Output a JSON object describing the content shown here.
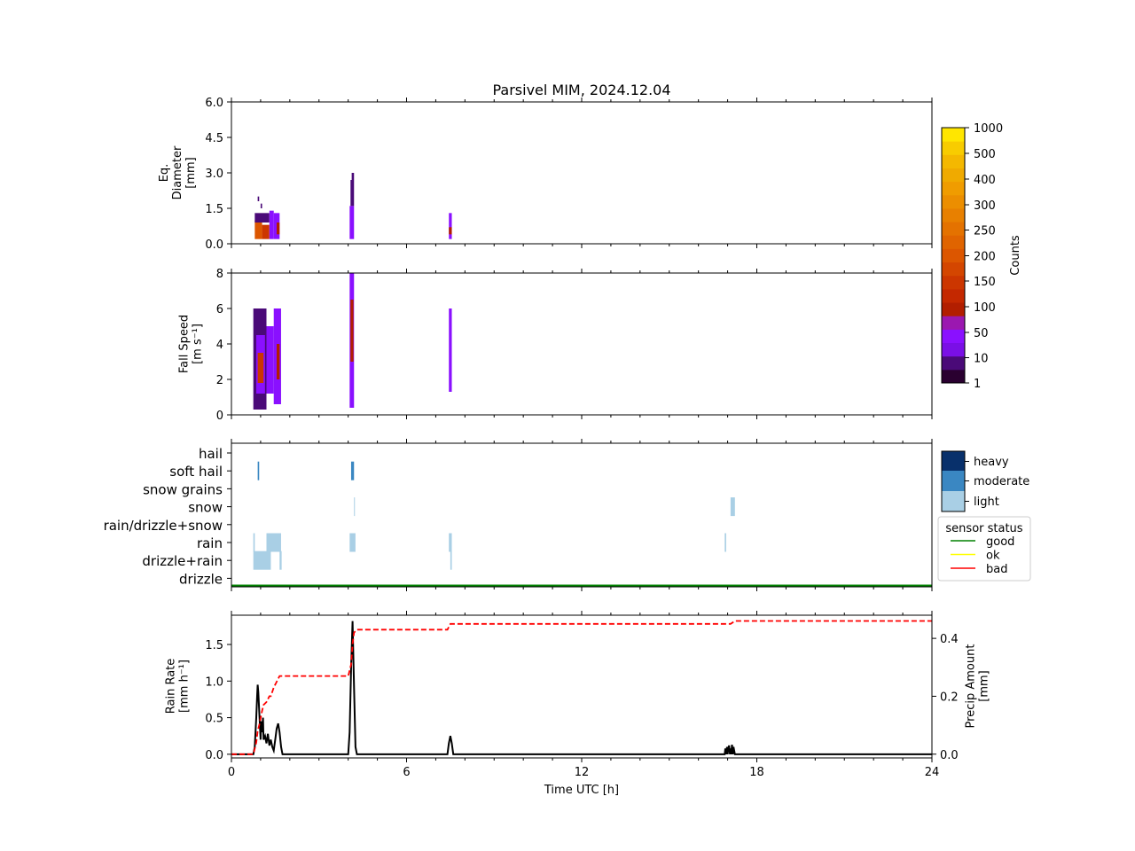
{
  "title": "Parsivel MIM, 2024.12.04",
  "colors": {
    "counts_levels": [
      "#2a0030",
      "#4a0a78",
      "#7a0fe6",
      "#8a10ff",
      "#9b18b0",
      "#b21e00",
      "#c42800",
      "#cc3600",
      "#d44600",
      "#dc5600",
      "#e06400",
      "#e47200",
      "#e88000",
      "#ec8e00",
      "#f09c00",
      "#f0aa00",
      "#f4b800",
      "#f8cc00",
      "#ffe600"
    ],
    "intensity": {
      "heavy": "#08306b",
      "moderate": "#3a87c2",
      "light": "#a9cfe5"
    },
    "status": {
      "good": "#008000",
      "ok": "#ffff00",
      "bad": "#ff0000"
    }
  },
  "chart_data": [
    {
      "panel": "diameter",
      "type": "heatmap",
      "ylabel": [
        "Eq.",
        "Diameter",
        "[mm]"
      ],
      "ylim": [
        0,
        6
      ],
      "yticks": [
        "0.0",
        "1.5",
        "3.0",
        "4.5",
        "6.0"
      ],
      "xlim": [
        0,
        24
      ],
      "cells": [
        {
          "t0": 0.8,
          "t1": 1.05,
          "d0": 0.2,
          "d1": 1.0,
          "level": 9
        },
        {
          "t0": 1.05,
          "t1": 1.3,
          "d0": 0.2,
          "d1": 0.8,
          "level": 7
        },
        {
          "t0": 0.8,
          "t1": 1.3,
          "d0": 0.9,
          "d1": 1.3,
          "level": 1
        },
        {
          "t0": 1.3,
          "t1": 1.45,
          "d0": 0.2,
          "d1": 1.4,
          "level": 3
        },
        {
          "t0": 1.45,
          "t1": 1.65,
          "d0": 0.2,
          "d1": 1.3,
          "level": 3
        },
        {
          "t0": 1.55,
          "t1": 1.65,
          "d0": 0.4,
          "d1": 0.9,
          "level": 5
        },
        {
          "t0": 0.9,
          "t1": 0.95,
          "d0": 1.8,
          "d1": 2.0,
          "level": 1
        },
        {
          "t0": 1.0,
          "t1": 1.05,
          "d0": 1.5,
          "d1": 1.7,
          "level": 1
        },
        {
          "t0": 4.05,
          "t1": 4.2,
          "d0": 0.2,
          "d1": 1.6,
          "level": 3
        },
        {
          "t0": 4.08,
          "t1": 4.2,
          "d0": 1.6,
          "d1": 2.7,
          "level": 1
        },
        {
          "t0": 4.12,
          "t1": 4.2,
          "d0": 2.7,
          "d1": 3.0,
          "level": 1
        },
        {
          "t0": 7.45,
          "t1": 7.55,
          "d0": 0.2,
          "d1": 1.3,
          "level": 3
        },
        {
          "t0": 7.45,
          "t1": 7.55,
          "d0": 0.4,
          "d1": 0.7,
          "level": 5
        }
      ]
    },
    {
      "panel": "fall_speed",
      "type": "heatmap",
      "ylabel": [
        "Fall Speed",
        "[m s⁻¹]"
      ],
      "ylim": [
        0,
        8
      ],
      "yticks": [
        "0",
        "2",
        "4",
        "6",
        "8"
      ],
      "xlim": [
        0,
        24
      ],
      "cells": [
        {
          "t0": 0.75,
          "t1": 1.2,
          "v0": 0.3,
          "v1": 6.0,
          "level": 1
        },
        {
          "t0": 0.85,
          "t1": 1.15,
          "v0": 1.2,
          "v1": 4.5,
          "level": 3
        },
        {
          "t0": 0.9,
          "t1": 1.1,
          "v0": 1.8,
          "v1": 3.5,
          "level": 7
        },
        {
          "t0": 1.2,
          "t1": 1.45,
          "v0": 1.2,
          "v1": 5.0,
          "level": 3
        },
        {
          "t0": 1.45,
          "t1": 1.7,
          "v0": 0.6,
          "v1": 6.0,
          "level": 3
        },
        {
          "t0": 1.55,
          "t1": 1.65,
          "v0": 2.0,
          "v1": 4.0,
          "level": 5
        },
        {
          "t0": 4.05,
          "t1": 4.2,
          "v0": 0.4,
          "v1": 8.0,
          "level": 3
        },
        {
          "t0": 4.08,
          "t1": 4.18,
          "v0": 3.0,
          "v1": 6.5,
          "level": 5
        },
        {
          "t0": 7.45,
          "t1": 7.55,
          "v0": 1.3,
          "v1": 6.0,
          "level": 3
        }
      ]
    },
    {
      "panel": "precip_type",
      "type": "heatmap",
      "categories": [
        "hail",
        "soft hail",
        "snow grains",
        "snow",
        "rain/drizzle+snow",
        "rain",
        "drizzle+rain",
        "drizzle"
      ],
      "xlim": [
        0,
        24
      ],
      "legend": {
        "labels": [
          "heavy",
          "moderate",
          "light"
        ]
      },
      "status_legend": {
        "title": "sensor status",
        "labels": [
          "good",
          "ok",
          "bad"
        ]
      },
      "status_series": {
        "value": "good",
        "from": 0,
        "to": 24
      },
      "cells": [
        {
          "cat": "soft hail",
          "t0": 0.9,
          "t1": 0.95,
          "intensity": "moderate"
        },
        {
          "cat": "soft hail",
          "t0": 4.1,
          "t1": 4.2,
          "intensity": "moderate"
        },
        {
          "cat": "snow",
          "t0": 4.2,
          "t1": 4.23,
          "intensity": "light"
        },
        {
          "cat": "snow",
          "t0": 17.1,
          "t1": 17.25,
          "intensity": "light"
        },
        {
          "cat": "rain",
          "t0": 0.75,
          "t1": 0.8,
          "intensity": "light"
        },
        {
          "cat": "rain",
          "t0": 1.2,
          "t1": 1.7,
          "intensity": "light"
        },
        {
          "cat": "rain",
          "t0": 4.05,
          "t1": 4.25,
          "intensity": "light"
        },
        {
          "cat": "rain",
          "t0": 7.45,
          "t1": 7.55,
          "intensity": "light"
        },
        {
          "cat": "rain",
          "t0": 16.9,
          "t1": 16.95,
          "intensity": "light"
        },
        {
          "cat": "drizzle+rain",
          "t0": 0.75,
          "t1": 1.35,
          "intensity": "light"
        },
        {
          "cat": "drizzle+rain",
          "t0": 1.65,
          "t1": 1.72,
          "intensity": "light"
        },
        {
          "cat": "drizzle+rain",
          "t0": 7.5,
          "t1": 7.55,
          "intensity": "light"
        }
      ]
    },
    {
      "panel": "rain",
      "type": "line",
      "xlabel": "Time UTC [h]",
      "xlim": [
        0,
        24
      ],
      "xticks": [
        "0",
        "6",
        "12",
        "18",
        "24"
      ],
      "ylabel": [
        "Rain Rate",
        "[mm h⁻¹]"
      ],
      "ylim": [
        -0.05,
        1.9
      ],
      "yticks": [
        "0.0",
        "0.5",
        "1.0",
        "1.5"
      ],
      "y2label": [
        "Precip Amount",
        "[mm]"
      ],
      "y2lim": [
        -0.013,
        0.48
      ],
      "y2ticks": [
        "0.0",
        "0.2",
        "0.4"
      ],
      "series": [
        {
          "axis": "left",
          "color": "#000000",
          "style": "solid",
          "x": [
            0,
            0.75,
            0.8,
            0.85,
            0.88,
            0.9,
            0.92,
            0.95,
            1.0,
            1.02,
            1.05,
            1.08,
            1.1,
            1.15,
            1.2,
            1.25,
            1.3,
            1.35,
            1.4,
            1.45,
            1.5,
            1.55,
            1.6,
            1.65,
            1.7,
            1.75,
            4.0,
            4.05,
            4.1,
            4.15,
            4.2,
            4.25,
            4.3,
            7.4,
            7.45,
            7.5,
            7.55,
            7.6,
            16.9,
            16.92,
            16.95,
            16.98,
            17.0,
            17.02,
            17.05,
            17.08,
            17.1,
            17.12,
            17.15,
            17.18,
            17.2,
            17.25,
            24
          ],
          "y": [
            0,
            0,
            0.1,
            0.5,
            0.8,
            0.95,
            0.85,
            0.6,
            0.2,
            0.45,
            0.3,
            0.5,
            0.2,
            0.25,
            0.15,
            0.28,
            0.12,
            0.2,
            0.1,
            0.05,
            0.2,
            0.35,
            0.42,
            0.3,
            0.1,
            0,
            0,
            0.3,
            1.2,
            1.82,
            0.9,
            0.1,
            0,
            0,
            0.15,
            0.25,
            0.15,
            0,
            0,
            0.08,
            0,
            0.1,
            0,
            0.07,
            0.12,
            0,
            0.08,
            0,
            0.13,
            0,
            0.1,
            0,
            0
          ]
        },
        {
          "axis": "right",
          "color": "#ff0000",
          "style": "dashed",
          "x": [
            0,
            0.75,
            0.85,
            0.9,
            0.95,
            1.05,
            1.1,
            1.2,
            1.3,
            1.35,
            1.45,
            1.55,
            1.65,
            1.7,
            4.0,
            4.1,
            4.15,
            4.2,
            4.3,
            7.4,
            7.5,
            7.55,
            17.1,
            17.25,
            24
          ],
          "y": [
            0,
            0,
            0.04,
            0.08,
            0.1,
            0.15,
            0.17,
            0.18,
            0.2,
            0.2,
            0.23,
            0.25,
            0.27,
            0.27,
            0.27,
            0.31,
            0.38,
            0.42,
            0.43,
            0.43,
            0.45,
            0.45,
            0.45,
            0.46,
            0.46
          ]
        }
      ]
    }
  ],
  "colorbar": {
    "label": "Counts",
    "ticks": [
      "1",
      "10",
      "50",
      "100",
      "150",
      "200",
      "250",
      "300",
      "400",
      "500",
      "1000"
    ]
  }
}
